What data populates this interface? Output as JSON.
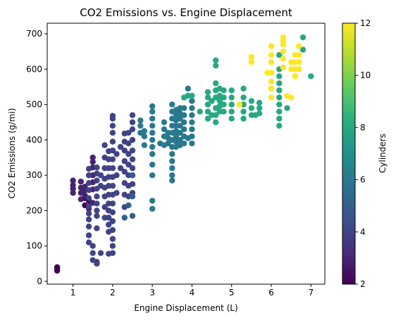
{
  "chart_data": {
    "type": "scatter",
    "title": "CO2 Emissions vs. Engine Displacement",
    "xlabel": "Engine Displacement (L)",
    "ylabel": "CO2 Emissions (g/mi)",
    "xlim": [
      0.35,
      7.35
    ],
    "ylim": [
      -8,
      730
    ],
    "x_ticks": [
      1,
      2,
      3,
      4,
      5,
      6,
      7
    ],
    "y_ticks": [
      0,
      100,
      200,
      300,
      400,
      500,
      600,
      700
    ],
    "grid": false,
    "colormap": "viridis",
    "colorbar": {
      "label": "Cylinders",
      "range": [
        2,
        12
      ],
      "ticks": [
        2,
        4,
        6,
        8,
        10,
        12
      ]
    },
    "series": [
      {
        "cylinders": 2,
        "points": [
          [
            0.6,
            30
          ],
          [
            0.6,
            35
          ],
          [
            0.6,
            40
          ],
          [
            1.3,
            215
          ],
          [
            1.3,
            235
          ],
          [
            1.4,
            228
          ]
        ]
      },
      {
        "cylinders": 3,
        "points": [
          [
            1.0,
            250
          ],
          [
            1.0,
            262
          ],
          [
            1.0,
            272
          ],
          [
            1.0,
            285
          ],
          [
            1.2,
            232
          ],
          [
            1.2,
            250
          ],
          [
            1.2,
            265
          ],
          [
            1.2,
            282
          ],
          [
            1.3,
            243
          ],
          [
            1.3,
            258
          ],
          [
            1.3,
            268
          ],
          [
            1.4,
            205
          ],
          [
            1.5,
            222
          ],
          [
            1.5,
            260
          ],
          [
            1.5,
            280
          ],
          [
            1.5,
            300
          ],
          [
            1.5,
            322
          ],
          [
            1.5,
            338
          ],
          [
            1.5,
            350
          ]
        ]
      },
      {
        "cylinders": 4,
        "points": [
          [
            1.4,
            110
          ],
          [
            1.4,
            130
          ],
          [
            1.4,
            155
          ],
          [
            1.4,
            175
          ],
          [
            1.4,
            192
          ],
          [
            1.4,
            212
          ],
          [
            1.4,
            235
          ],
          [
            1.4,
            258
          ],
          [
            1.4,
            278
          ],
          [
            1.4,
            300
          ],
          [
            1.4,
            318
          ],
          [
            1.5,
            60
          ],
          [
            1.5,
            80
          ],
          [
            1.5,
            100
          ],
          [
            1.6,
            50
          ],
          [
            1.6,
            55
          ],
          [
            1.6,
            150
          ],
          [
            1.6,
            185
          ],
          [
            1.6,
            200
          ],
          [
            1.6,
            220
          ],
          [
            1.6,
            240
          ],
          [
            1.6,
            262
          ],
          [
            1.6,
            285
          ],
          [
            1.6,
            305
          ],
          [
            1.6,
            322
          ],
          [
            1.7,
            80
          ],
          [
            1.7,
            270
          ],
          [
            1.7,
            300
          ],
          [
            1.8,
            180
          ],
          [
            1.8,
            210
          ],
          [
            1.8,
            240
          ],
          [
            1.8,
            265
          ],
          [
            1.8,
            290
          ],
          [
            1.8,
            320
          ],
          [
            1.8,
            350
          ],
          [
            1.8,
            385
          ],
          [
            1.9,
            78
          ],
          [
            1.9,
            140
          ],
          [
            1.9,
            160
          ],
          [
            1.9,
            180
          ],
          [
            1.9,
            200
          ],
          [
            1.9,
            220
          ],
          [
            1.9,
            245
          ],
          [
            1.9,
            270
          ],
          [
            1.9,
            295
          ],
          [
            1.9,
            320
          ],
          [
            1.9,
            345
          ],
          [
            1.9,
            368
          ],
          [
            2.0,
            80
          ],
          [
            2.0,
            100
          ],
          [
            2.0,
            120
          ],
          [
            2.0,
            145
          ],
          [
            2.0,
            170
          ],
          [
            2.0,
            195
          ],
          [
            2.0,
            220
          ],
          [
            2.0,
            245
          ],
          [
            2.0,
            270
          ],
          [
            2.0,
            295
          ],
          [
            2.0,
            320
          ],
          [
            2.0,
            345
          ],
          [
            2.0,
            370
          ],
          [
            2.0,
            395
          ],
          [
            2.0,
            420
          ],
          [
            2.0,
            440
          ],
          [
            2.0,
            460
          ],
          [
            2.0,
            468
          ],
          [
            2.1,
            250
          ],
          [
            2.1,
            300
          ],
          [
            2.1,
            360
          ],
          [
            2.2,
            320
          ],
          [
            2.2,
            380
          ],
          [
            2.3,
            210
          ],
          [
            2.3,
            245
          ],
          [
            2.3,
            278
          ],
          [
            2.3,
            310
          ],
          [
            2.3,
            340
          ],
          [
            2.3,
            370
          ],
          [
            2.3,
            395
          ],
          [
            2.3,
            418
          ],
          [
            2.4,
            240
          ],
          [
            2.4,
            270
          ],
          [
            2.4,
            300
          ],
          [
            2.4,
            330
          ],
          [
            2.4,
            360
          ],
          [
            2.4,
            390
          ],
          [
            2.4,
            420
          ],
          [
            2.5,
            250
          ],
          [
            2.5,
            275
          ],
          [
            2.5,
            300
          ],
          [
            2.5,
            320
          ],
          [
            2.5,
            345
          ],
          [
            2.5,
            370
          ],
          [
            2.5,
            400
          ],
          [
            2.5,
            430
          ],
          [
            2.5,
            450
          ],
          [
            2.5,
            470
          ]
        ]
      },
      {
        "cylinders": 5,
        "points": [
          [
            2.3,
            180
          ],
          [
            2.4,
            215
          ],
          [
            2.5,
            185
          ],
          [
            2.5,
            240
          ],
          [
            2.5,
            300
          ]
        ]
      },
      {
        "cylinders": 6,
        "points": [
          [
            2.7,
            420
          ],
          [
            2.7,
            440
          ],
          [
            2.7,
            455
          ],
          [
            2.8,
            385
          ],
          [
            2.8,
            410
          ],
          [
            2.8,
            425
          ],
          [
            3.0,
            205
          ],
          [
            3.0,
            228
          ],
          [
            3.0,
            300
          ],
          [
            3.0,
            330
          ],
          [
            3.0,
            360
          ],
          [
            3.0,
            380
          ],
          [
            3.0,
            400
          ],
          [
            3.0,
            420
          ],
          [
            3.0,
            440
          ],
          [
            3.0,
            460
          ],
          [
            3.0,
            480
          ],
          [
            3.0,
            495
          ],
          [
            3.2,
            390
          ],
          [
            3.3,
            385
          ],
          [
            3.3,
            410
          ],
          [
            3.3,
            430
          ],
          [
            3.3,
            450
          ],
          [
            3.4,
            390
          ],
          [
            3.4,
            405
          ],
          [
            3.4,
            420
          ],
          [
            3.5,
            285
          ],
          [
            3.5,
            300
          ],
          [
            3.5,
            320
          ],
          [
            3.5,
            340
          ],
          [
            3.5,
            360
          ],
          [
            3.5,
            380
          ],
          [
            3.5,
            400
          ],
          [
            3.5,
            420
          ],
          [
            3.5,
            440
          ],
          [
            3.5,
            460
          ],
          [
            3.5,
            480
          ],
          [
            3.5,
            500
          ],
          [
            3.6,
            380
          ],
          [
            3.6,
            395
          ],
          [
            3.6,
            410
          ],
          [
            3.6,
            425
          ],
          [
            3.6,
            440
          ],
          [
            3.6,
            455
          ],
          [
            3.6,
            470
          ],
          [
            3.6,
            485
          ],
          [
            3.7,
            385
          ],
          [
            3.7,
            400
          ],
          [
            3.7,
            420
          ],
          [
            3.7,
            440
          ],
          [
            3.7,
            460
          ],
          [
            3.7,
            475
          ],
          [
            3.7,
            490
          ],
          [
            3.8,
            390
          ],
          [
            3.8,
            410
          ],
          [
            3.8,
            430
          ],
          [
            3.8,
            450
          ],
          [
            3.8,
            470
          ],
          [
            3.8,
            490
          ],
          [
            3.9,
            405
          ],
          [
            3.9,
            545
          ],
          [
            4.0,
            390
          ],
          [
            4.0,
            410
          ],
          [
            4.0,
            430
          ],
          [
            4.0,
            450
          ],
          [
            4.0,
            470
          ],
          [
            4.0,
            490
          ],
          [
            4.0,
            510
          ]
        ]
      },
      {
        "cylinders": 8,
        "points": [
          [
            3.8,
            520
          ],
          [
            3.9,
            525
          ],
          [
            4.0,
            525
          ],
          [
            4.2,
            480
          ],
          [
            4.4,
            500
          ],
          [
            4.6,
            520
          ],
          [
            4.6,
            540
          ],
          [
            4.6,
            560
          ],
          [
            4.7,
            480
          ],
          [
            4.7,
            495
          ],
          [
            4.7,
            510
          ],
          [
            4.7,
            525
          ],
          [
            4.7,
            545
          ],
          [
            4.8,
            480
          ],
          [
            4.8,
            500
          ],
          [
            4.8,
            520
          ],
          [
            4.8,
            540
          ],
          [
            4.4,
            460
          ],
          [
            4.4,
            480
          ],
          [
            4.4,
            500
          ],
          [
            4.4,
            520
          ],
          [
            4.4,
            535
          ],
          [
            4.5,
            470
          ],
          [
            4.5,
            510
          ],
          [
            4.6,
            450
          ],
          [
            4.6,
            470
          ],
          [
            4.6,
            490
          ],
          [
            4.6,
            625
          ],
          [
            4.6,
            610
          ],
          [
            5.0,
            460
          ],
          [
            5.0,
            480
          ],
          [
            5.0,
            500
          ],
          [
            5.0,
            520
          ],
          [
            5.0,
            540
          ],
          [
            5.3,
            460
          ],
          [
            5.3,
            480
          ],
          [
            5.3,
            500
          ],
          [
            5.3,
            520
          ],
          [
            5.3,
            545
          ],
          [
            5.5,
            470
          ],
          [
            5.5,
            490
          ],
          [
            5.5,
            510
          ],
          [
            5.7,
            475
          ],
          [
            5.7,
            490
          ],
          [
            5.7,
            505
          ],
          [
            6.2,
            440
          ],
          [
            6.2,
            460
          ],
          [
            6.2,
            480
          ],
          [
            6.2,
            500
          ],
          [
            6.2,
            520
          ],
          [
            6.2,
            540
          ],
          [
            6.2,
            560
          ],
          [
            6.2,
            580
          ],
          [
            6.2,
            600
          ],
          [
            6.2,
            640
          ],
          [
            6.4,
            490
          ],
          [
            6.8,
            690
          ],
          [
            6.8,
            655
          ],
          [
            7.0,
            580
          ],
          [
            5.6,
            470
          ]
        ]
      },
      {
        "cylinders": 12,
        "points": [
          [
            5.2,
            500
          ],
          [
            5.5,
            620
          ],
          [
            5.5,
            635
          ],
          [
            5.9,
            590
          ],
          [
            6.0,
            520
          ],
          [
            6.0,
            545
          ],
          [
            6.0,
            565
          ],
          [
            6.0,
            590
          ],
          [
            6.0,
            620
          ],
          [
            6.0,
            640
          ],
          [
            6.0,
            665
          ],
          [
            6.3,
            605
          ],
          [
            6.3,
            630
          ],
          [
            6.3,
            650
          ],
          [
            6.3,
            670
          ],
          [
            6.3,
            690
          ],
          [
            6.4,
            525
          ],
          [
            6.5,
            600
          ],
          [
            6.5,
            620
          ],
          [
            6.6,
            580
          ],
          [
            6.6,
            600
          ],
          [
            6.6,
            620
          ],
          [
            6.6,
            640
          ],
          [
            6.7,
            600
          ],
          [
            6.7,
            620
          ],
          [
            6.7,
            640
          ],
          [
            6.7,
            665
          ],
          [
            6.3,
            680
          ],
          [
            6.5,
            520
          ]
        ]
      }
    ]
  }
}
